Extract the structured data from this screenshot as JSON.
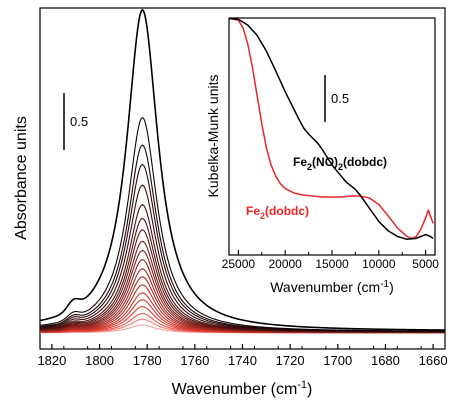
{
  "chart_data": [
    {
      "type": "line",
      "xlabel": "Wavenumber (cm",
      "xlabel_sup": "-1",
      "xlabel_end": ")",
      "ylabel": "Absorbance units",
      "xlim": [
        1825,
        1655
      ],
      "x_ticks": [
        1820,
        1800,
        1780,
        1760,
        1740,
        1720,
        1700,
        1680,
        1660
      ],
      "x_tick_labels": [
        "1820",
        "1800",
        "1780",
        "1760",
        "1740",
        "1720",
        "1700",
        "1680",
        "1660"
      ],
      "scale_bar": {
        "label": "0.5",
        "value": 0.5
      },
      "peak_center": 1782,
      "minor_peak_center": 1811,
      "series_peak_heights": [
        2.82,
        1.88,
        1.64,
        1.47,
        1.29,
        1.12,
        1.0,
        0.9,
        0.8,
        0.72,
        0.64,
        0.56,
        0.49,
        0.42,
        0.35,
        0.29,
        0.23,
        0.17,
        0.12,
        0.07
      ],
      "series_colors": [
        "#000000",
        "#0e0303",
        "#1c0606",
        "#2a0809",
        "#380a0c",
        "#46100f",
        "#551412",
        "#631815",
        "#711c18",
        "#80201b",
        "#8e241e",
        "#9c2821",
        "#aa2c24",
        "#b83027",
        "#c6342a",
        "#d4382d",
        "#e03d33",
        "#e85650",
        "#ef7b76",
        "#f4a09c"
      ]
    },
    {
      "type": "line",
      "xlabel": "Wavenumber (cm",
      "xlabel_sup": "-1",
      "xlabel_end": ")",
      "ylabel": "Kubelka-Munk units",
      "xlim": [
        26000,
        4000
      ],
      "x_ticks": [
        25000,
        20000,
        15000,
        10000,
        5000
      ],
      "x_tick_labels": [
        "25000",
        "20000",
        "15000",
        "10000",
        "5000"
      ],
      "scale_bar": {
        "label": "0.5",
        "value": 0.5
      },
      "series": [
        {
          "name_main": "Fe",
          "name_sub1": "2",
          "name_mid": "(NO)",
          "name_sub2": "2",
          "name_end": "(dobdc)",
          "color": "#000000",
          "x": [
            26000,
            25000,
            24000,
            23000,
            22000,
            21000,
            20000,
            19000,
            18500,
            18000,
            17500,
            17000,
            16500,
            16000,
            15500,
            15000,
            14500,
            14000,
            13500,
            13000,
            12500,
            12000,
            11000,
            10000,
            9000,
            8000,
            7000,
            6000,
            5000,
            4500,
            4200
          ],
          "y": [
            2.4,
            2.39,
            2.33,
            2.22,
            2.05,
            1.84,
            1.62,
            1.42,
            1.32,
            1.23,
            1.17,
            1.12,
            1.07,
            1.0,
            0.92,
            0.84,
            0.78,
            0.72,
            0.66,
            0.62,
            0.58,
            0.52,
            0.38,
            0.24,
            0.14,
            0.08,
            0.05,
            0.06,
            0.1,
            0.08,
            0.06
          ]
        },
        {
          "name_main": "Fe",
          "name_sub1": "2",
          "name_end": "(dobdc)",
          "color": "#e8252a",
          "x": [
            26000,
            25000,
            24500,
            24000,
            23500,
            23000,
            22500,
            22000,
            21500,
            21000,
            20500,
            20000,
            19000,
            18000,
            17000,
            16000,
            15000,
            14000,
            13000,
            12000,
            11000,
            10000,
            9000,
            8000,
            7000,
            6500,
            6000,
            5500,
            5000,
            4700,
            4500,
            4200
          ],
          "y": [
            2.4,
            2.38,
            2.3,
            2.13,
            1.88,
            1.58,
            1.28,
            1.02,
            0.84,
            0.72,
            0.64,
            0.59,
            0.54,
            0.52,
            0.51,
            0.5,
            0.5,
            0.5,
            0.51,
            0.51,
            0.49,
            0.42,
            0.3,
            0.17,
            0.08,
            0.06,
            0.08,
            0.16,
            0.28,
            0.36,
            0.3,
            0.22
          ]
        }
      ]
    }
  ]
}
